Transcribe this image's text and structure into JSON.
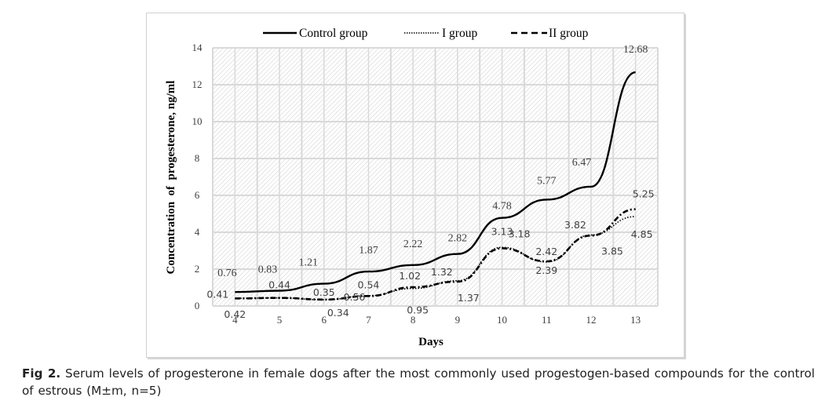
{
  "chart_data": {
    "type": "line",
    "title": "",
    "xlabel": "Days",
    "ylabel": "Concentration  of  progesterone, ng/ml",
    "x": [
      4,
      5,
      6,
      7,
      8,
      9,
      10,
      11,
      12,
      13
    ],
    "x_tick_labels": [
      "4",
      "5",
      "6",
      "7",
      "8",
      "9",
      "10",
      "11",
      "12",
      "13"
    ],
    "ylim": [
      0,
      14
    ],
    "y_ticks": [
      0,
      2,
      4,
      6,
      8,
      10,
      12,
      14
    ],
    "y_tick_labels": [
      "0",
      "2",
      "4",
      "6",
      "8",
      "10",
      "12",
      "14"
    ],
    "grid": true,
    "legend_position": "top",
    "series": [
      {
        "name": "Control group",
        "style": "solid",
        "values": [
          0.76,
          0.83,
          1.21,
          1.87,
          2.22,
          2.82,
          4.78,
          5.77,
          6.47,
          12.68
        ],
        "labels": [
          "0.76",
          "0.83",
          "1.21",
          "1.87",
          "2.22",
          "2.82",
          "4.78",
          "5.77",
          "6.47",
          "12.68"
        ]
      },
      {
        "name": "I group",
        "style": "dotted",
        "values": [
          0.42,
          0.44,
          0.34,
          0.56,
          0.95,
          1.37,
          3.18,
          2.39,
          3.85,
          4.85
        ],
        "labels": [
          "0.42",
          "",
          "0.34",
          "0.56",
          "0.95",
          "1.37",
          "3.18",
          "2.39",
          "3.85",
          "4.85"
        ]
      },
      {
        "name": "II group",
        "style": "dashed",
        "values": [
          0.41,
          0.44,
          0.35,
          0.54,
          1.02,
          1.32,
          3.13,
          2.42,
          3.82,
          5.25
        ],
        "labels": [
          "0.41",
          "0.44",
          "0.35",
          "0.54",
          "1.02",
          "1.32",
          "3.13",
          "2.42",
          "3.82",
          "5.25"
        ]
      }
    ]
  },
  "colors": {
    "line": "#000000",
    "label_text": "#404040",
    "grid": "#d9d9d9",
    "hatch": "#d0d0d0",
    "frame": "#d0d0d0"
  },
  "caption": {
    "prefix": "Fig 2.",
    "text": " Serum levels of progesterone in female dogs after the most commonly used progestogen-based compounds for the control of estrous (M±m, n=5)"
  }
}
